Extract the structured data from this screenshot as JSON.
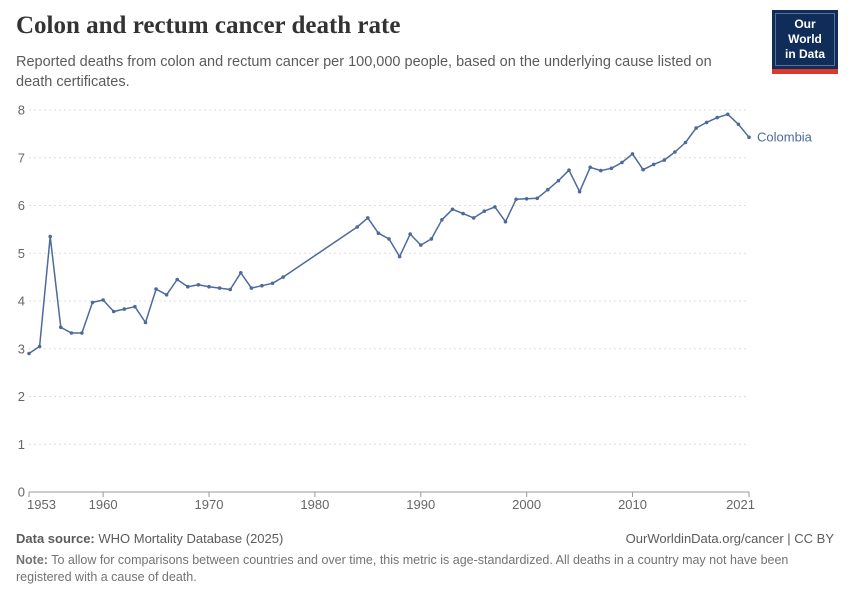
{
  "header": {
    "title": "Colon and rectum cancer death rate",
    "subtitle": "Reported deaths from colon and rectum cancer per 100,000 people, based on the underlying cause listed on death certificates.",
    "logo": {
      "line1": "Our World",
      "line2": "in Data",
      "bg_color": "#102D59",
      "bar_color": "#D93A2B"
    }
  },
  "chart_data": {
    "type": "line",
    "title": "Colon and rectum cancer death rate",
    "xlabel": "",
    "ylabel": "",
    "xlim": [
      1953,
      2021
    ],
    "ylim": [
      0,
      8
    ],
    "xticks": [
      1953,
      1960,
      1970,
      1980,
      1990,
      2000,
      2010,
      2021
    ],
    "yticks": [
      0,
      1,
      2,
      3,
      4,
      5,
      6,
      7,
      8
    ],
    "grid": "horizontal-dashed",
    "legend_position": "end-of-line-label",
    "series": [
      {
        "name": "Colombia",
        "color": "#4C6A9C",
        "points": [
          [
            1953,
            2.9
          ],
          [
            1954,
            3.05
          ],
          [
            1955,
            5.35
          ],
          [
            1956,
            3.45
          ],
          [
            1957,
            3.33
          ],
          [
            1958,
            3.33
          ],
          [
            1959,
            3.97
          ],
          [
            1960,
            4.02
          ],
          [
            1961,
            3.78
          ],
          [
            1962,
            3.83
          ],
          [
            1963,
            3.88
          ],
          [
            1964,
            3.55
          ],
          [
            1965,
            4.25
          ],
          [
            1966,
            4.13
          ],
          [
            1967,
            4.45
          ],
          [
            1968,
            4.3
          ],
          [
            1969,
            4.34
          ],
          [
            1970,
            4.3
          ],
          [
            1971,
            4.27
          ],
          [
            1972,
            4.24
          ],
          [
            1973,
            4.59
          ],
          [
            1974,
            4.27
          ],
          [
            1975,
            4.32
          ],
          [
            1976,
            4.37
          ],
          [
            1977,
            4.5
          ],
          [
            1984,
            5.55
          ],
          [
            1985,
            5.74
          ],
          [
            1986,
            5.42
          ],
          [
            1987,
            5.3
          ],
          [
            1988,
            4.93
          ],
          [
            1989,
            5.4
          ],
          [
            1990,
            5.17
          ],
          [
            1991,
            5.3
          ],
          [
            1992,
            5.7
          ],
          [
            1993,
            5.92
          ],
          [
            1994,
            5.83
          ],
          [
            1995,
            5.74
          ],
          [
            1996,
            5.88
          ],
          [
            1997,
            5.97
          ],
          [
            1998,
            5.66
          ],
          [
            1999,
            6.13
          ],
          [
            2000,
            6.14
          ],
          [
            2001,
            6.15
          ],
          [
            2002,
            6.33
          ],
          [
            2003,
            6.52
          ],
          [
            2004,
            6.74
          ],
          [
            2005,
            6.29
          ],
          [
            2006,
            6.8
          ],
          [
            2007,
            6.73
          ],
          [
            2008,
            6.78
          ],
          [
            2009,
            6.9
          ],
          [
            2010,
            7.08
          ],
          [
            2011,
            6.75
          ],
          [
            2012,
            6.86
          ],
          [
            2013,
            6.95
          ],
          [
            2014,
            7.12
          ],
          [
            2015,
            7.32
          ],
          [
            2016,
            7.62
          ],
          [
            2017,
            7.74
          ],
          [
            2018,
            7.84
          ],
          [
            2019,
            7.91
          ],
          [
            2020,
            7.7
          ],
          [
            2021,
            7.43
          ]
        ]
      }
    ],
    "colors": {
      "grid": "#dedede",
      "axis": "#999999",
      "tick_label": "#666666"
    }
  },
  "footer": {
    "source_label": "Data source:",
    "source_value": " WHO Mortality Database (2025)",
    "link": "OurWorldinData.org/cancer | CC BY",
    "note_label": "Note:",
    "note_value": " To allow for comparisons between countries and over time, this metric is age-standardized. All deaths in a country may not have been registered with a cause of death."
  }
}
